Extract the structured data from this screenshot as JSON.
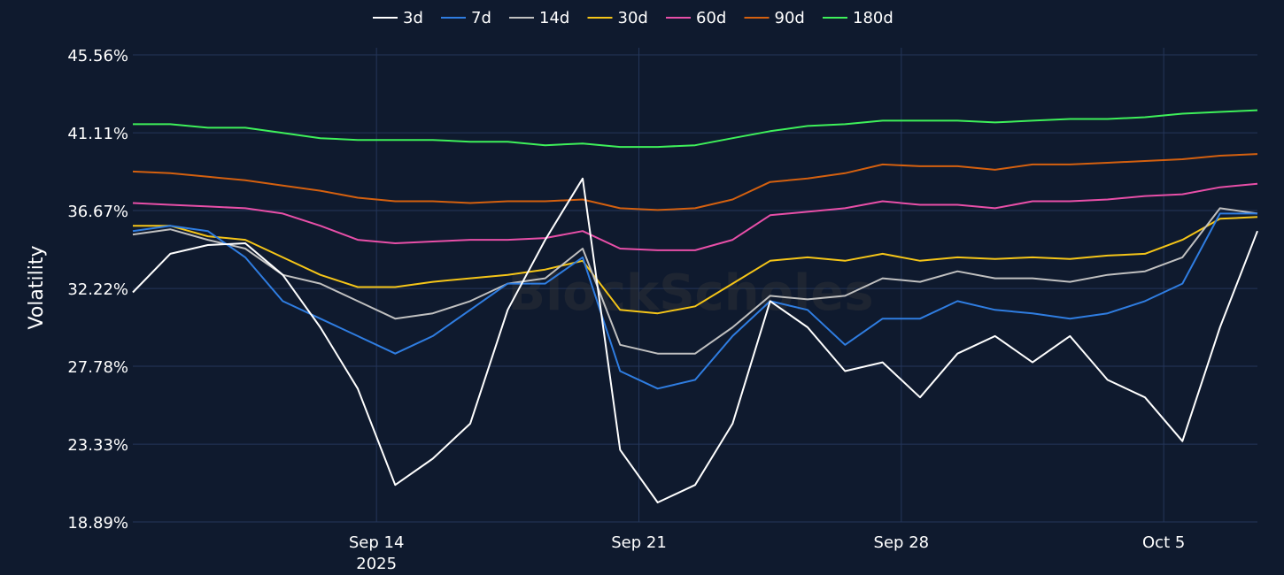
{
  "chart_data": {
    "type": "line",
    "ylabel": "Volatility",
    "y_ticks": [
      "18.89%",
      "23.33%",
      "27.78%",
      "32.22%",
      "36.67%",
      "41.11%",
      "45.56%"
    ],
    "ylim": [
      18.89,
      45.56
    ],
    "x_ticks": [
      {
        "date": "2025-09-14",
        "label": "Sep 14",
        "sublabel": "2025"
      },
      {
        "date": "2025-09-21",
        "label": "Sep 21",
        "sublabel": ""
      },
      {
        "date": "2025-09-28",
        "label": "Sep 28",
        "sublabel": ""
      },
      {
        "date": "2025-10-05",
        "label": "Oct 5",
        "sublabel": ""
      }
    ],
    "xlim": [
      "2025-09-07T12:00",
      "2025-10-07T12:00"
    ],
    "grid": true,
    "legend_position": "top-center",
    "watermark": "BlockScholes",
    "colors": {
      "background": "#0f1a2e",
      "grid": "#24365a"
    },
    "x": [
      "2025-09-07T12:00",
      "2025-09-08T12:00",
      "2025-09-09T12:00",
      "2025-09-10T12:00",
      "2025-09-11T12:00",
      "2025-09-12T12:00",
      "2025-09-13T12:00",
      "2025-09-14T12:00",
      "2025-09-15T12:00",
      "2025-09-16T12:00",
      "2025-09-17T12:00",
      "2025-09-18T12:00",
      "2025-09-19T12:00",
      "2025-09-20T12:00",
      "2025-09-21T12:00",
      "2025-09-22T12:00",
      "2025-09-23T12:00",
      "2025-09-24T12:00",
      "2025-09-25T12:00",
      "2025-09-26T12:00",
      "2025-09-27T12:00",
      "2025-09-28T12:00",
      "2025-09-29T12:00",
      "2025-09-30T12:00",
      "2025-10-01T12:00",
      "2025-10-02T12:00",
      "2025-10-03T12:00",
      "2025-10-04T12:00",
      "2025-10-05T12:00",
      "2025-10-06T12:00",
      "2025-10-07T12:00"
    ],
    "series": [
      {
        "name": "3d",
        "color": "#ffffff",
        "values": [
          32.0,
          34.2,
          34.7,
          34.8,
          33.0,
          30.0,
          26.5,
          21.0,
          22.5,
          24.5,
          31.0,
          35.0,
          38.5,
          23.0,
          20.0,
          21.0,
          24.5,
          31.5,
          30.0,
          27.5,
          28.0,
          26.0,
          28.5,
          29.5,
          28.0,
          29.5,
          27.0,
          26.0,
          23.5,
          30.0,
          35.5
        ]
      },
      {
        "name": "7d",
        "color": "#2f7de1",
        "values": [
          35.5,
          35.8,
          35.5,
          34.0,
          31.5,
          30.5,
          29.5,
          28.5,
          29.5,
          31.0,
          32.5,
          32.5,
          34.0,
          27.5,
          26.5,
          27.0,
          29.5,
          31.5,
          31.0,
          29.0,
          30.5,
          30.5,
          31.5,
          31.0,
          30.8,
          30.5,
          30.8,
          31.5,
          32.5,
          36.5,
          36.5
        ]
      },
      {
        "name": "14d",
        "color": "#c0c0c0",
        "values": [
          35.3,
          35.6,
          35.0,
          34.5,
          33.0,
          32.5,
          31.5,
          30.5,
          30.8,
          31.5,
          32.5,
          32.8,
          34.5,
          29.0,
          28.5,
          28.5,
          30.0,
          31.8,
          31.6,
          31.8,
          32.8,
          32.6,
          33.2,
          32.8,
          32.8,
          32.6,
          33.0,
          33.2,
          34.0,
          36.8,
          36.5
        ]
      },
      {
        "name": "30d",
        "color": "#f5c518",
        "values": [
          35.8,
          35.8,
          35.2,
          35.0,
          34.0,
          33.0,
          32.3,
          32.3,
          32.6,
          32.8,
          33.0,
          33.3,
          33.8,
          31.0,
          30.8,
          31.2,
          32.5,
          33.8,
          34.0,
          33.8,
          34.2,
          33.8,
          34.0,
          33.9,
          34.0,
          33.9,
          34.1,
          34.2,
          35.0,
          36.2,
          36.3
        ]
      },
      {
        "name": "60d",
        "color": "#e84fa8",
        "values": [
          37.1,
          37.0,
          36.9,
          36.8,
          36.5,
          35.8,
          35.0,
          34.8,
          34.9,
          35.0,
          35.0,
          35.1,
          35.5,
          34.5,
          34.4,
          34.4,
          35.0,
          36.4,
          36.6,
          36.8,
          37.2,
          37.0,
          37.0,
          36.8,
          37.2,
          37.2,
          37.3,
          37.5,
          37.6,
          38.0,
          38.2
        ]
      },
      {
        "name": "90d",
        "color": "#d4600f",
        "values": [
          38.9,
          38.8,
          38.6,
          38.4,
          38.1,
          37.8,
          37.4,
          37.2,
          37.2,
          37.1,
          37.2,
          37.2,
          37.3,
          36.8,
          36.7,
          36.8,
          37.3,
          38.3,
          38.5,
          38.8,
          39.3,
          39.2,
          39.2,
          39.0,
          39.3,
          39.3,
          39.4,
          39.5,
          39.6,
          39.8,
          39.9
        ]
      },
      {
        "name": "180d",
        "color": "#3ef05a",
        "values": [
          41.6,
          41.6,
          41.4,
          41.4,
          41.1,
          40.8,
          40.7,
          40.7,
          40.7,
          40.6,
          40.6,
          40.4,
          40.5,
          40.3,
          40.3,
          40.4,
          40.8,
          41.2,
          41.5,
          41.6,
          41.8,
          41.8,
          41.8,
          41.7,
          41.8,
          41.9,
          41.9,
          42.0,
          42.2,
          42.3,
          42.4
        ]
      }
    ]
  }
}
